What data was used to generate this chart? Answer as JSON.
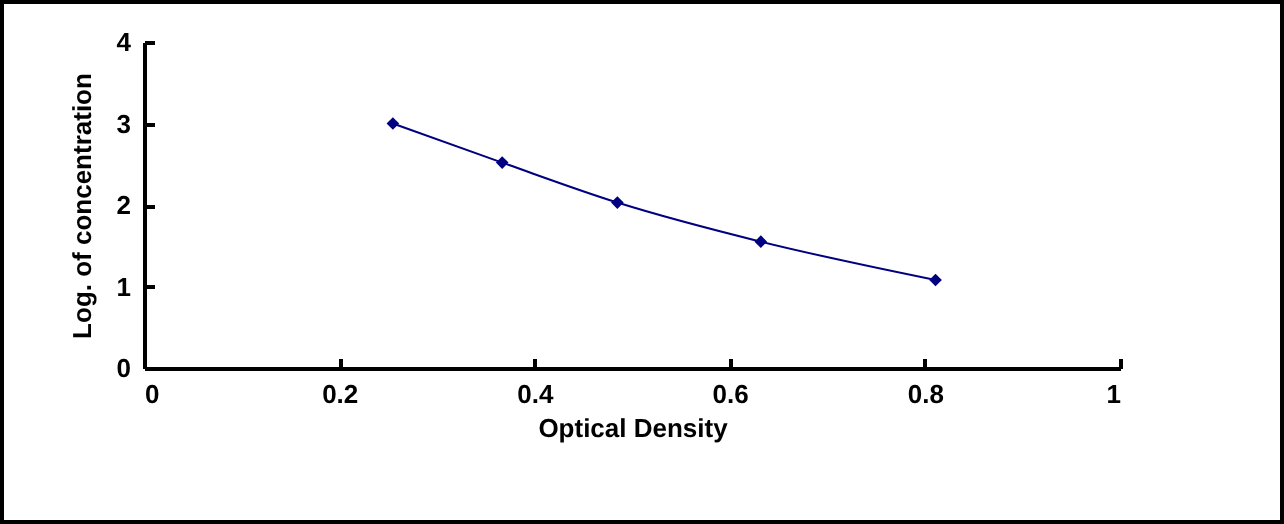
{
  "chart_data": {
    "type": "line",
    "xlabel": "Optical Density",
    "ylabel": "Log. of concentration",
    "x": [
      0.255,
      0.367,
      0.485,
      0.632,
      0.811
    ],
    "series": [
      {
        "color": "#000080",
        "values": [
          3.0,
          2.52,
          2.03,
          1.55,
          1.08
        ]
      }
    ],
    "xlim": [
      0,
      1
    ],
    "xticks": [
      0,
      0.2,
      0.4,
      0.6,
      0.8,
      1
    ],
    "ylim": [
      0,
      4
    ],
    "yticks": [
      0,
      1,
      2,
      3,
      4
    ],
    "grid": false,
    "marker": "diamond",
    "line_style": "solid"
  }
}
